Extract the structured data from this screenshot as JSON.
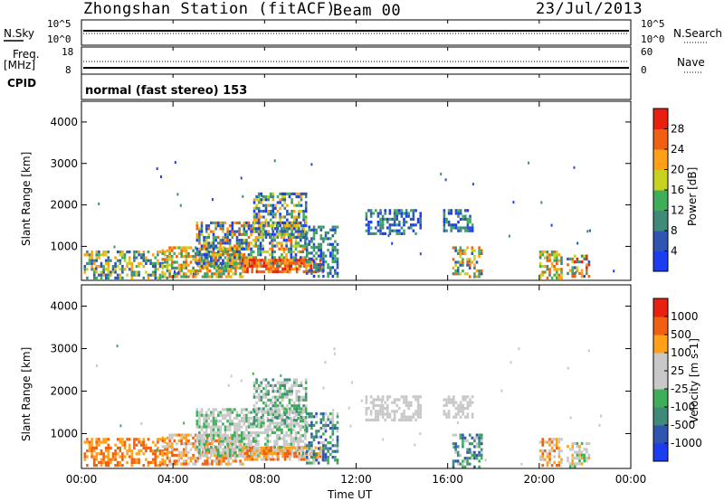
{
  "header": {
    "title": "Zhongshan Station (fitACF)",
    "beam": "Beam 00",
    "date": "23/Jul/2013"
  },
  "side_labels": {
    "nsky": "N.Sky",
    "nsearch": "N.Search",
    "freq": "Freq.",
    "freq_unit": "[MHz]",
    "cpid": "CPID",
    "nave": "Nave",
    "cpid_text": "normal (fast stereo) 153"
  },
  "noise_panel": {
    "left_ticks": [
      "10^5",
      "10^0"
    ],
    "right_ticks": [
      "10^5",
      "10^0"
    ]
  },
  "freq_panel": {
    "left_ticks": [
      "18",
      "8"
    ],
    "right_ticks": [
      "60",
      "0"
    ]
  },
  "colors": {
    "power": [
      "#1a3df0",
      "#2f55b0",
      "#3f8a78",
      "#3fae58",
      "#c8d020",
      "#ffa018",
      "#f06010",
      "#e82010"
    ],
    "velocity": [
      "#e82010",
      "#f06010",
      "#ffa018",
      "#c8c8c8",
      "#c8c8c8",
      "#3fae58",
      "#3f8a78",
      "#2f55b0",
      "#1a3df0"
    ]
  },
  "chart_data": [
    {
      "type": "heatmap",
      "name": "power",
      "ylabel": "Slant Range [km]",
      "ylim": [
        180,
        4500
      ],
      "y_ticks": [
        "1000",
        "2000",
        "3000",
        "4000"
      ],
      "y_tick_values": [
        1000,
        2000,
        3000,
        4000
      ],
      "x_ticks": [
        "00:00",
        "04:00",
        "08:00",
        "12:00",
        "16:00",
        "20:00",
        "00:00"
      ],
      "x_tick_values": [
        0,
        4,
        8,
        12,
        16,
        20,
        24
      ],
      "colorbar_label": "Power [dB]",
      "colorbar_ticks": [
        "4",
        "8",
        "12",
        "16",
        "20",
        "24",
        "28"
      ],
      "colorbar_range": [
        0,
        32
      ]
    },
    {
      "type": "heatmap",
      "name": "velocity",
      "ylabel": "Slant Range [km]",
      "ylim": [
        180,
        4500
      ],
      "y_ticks": [
        "1000",
        "2000",
        "3000",
        "4000"
      ],
      "y_tick_values": [
        1000,
        2000,
        3000,
        4000
      ],
      "x_ticks": [
        "00:00",
        "04:00",
        "08:00",
        "12:00",
        "16:00",
        "20:00",
        "00:00"
      ],
      "x_tick_values": [
        0,
        4,
        8,
        12,
        16,
        20,
        24
      ],
      "xlabel": "Time UT",
      "colorbar_label": "Velocity [m s-1]",
      "colorbar_ticks": [
        "1000",
        "500",
        "100",
        "25",
        "-25",
        "-100",
        "-500",
        "-1000"
      ]
    }
  ]
}
